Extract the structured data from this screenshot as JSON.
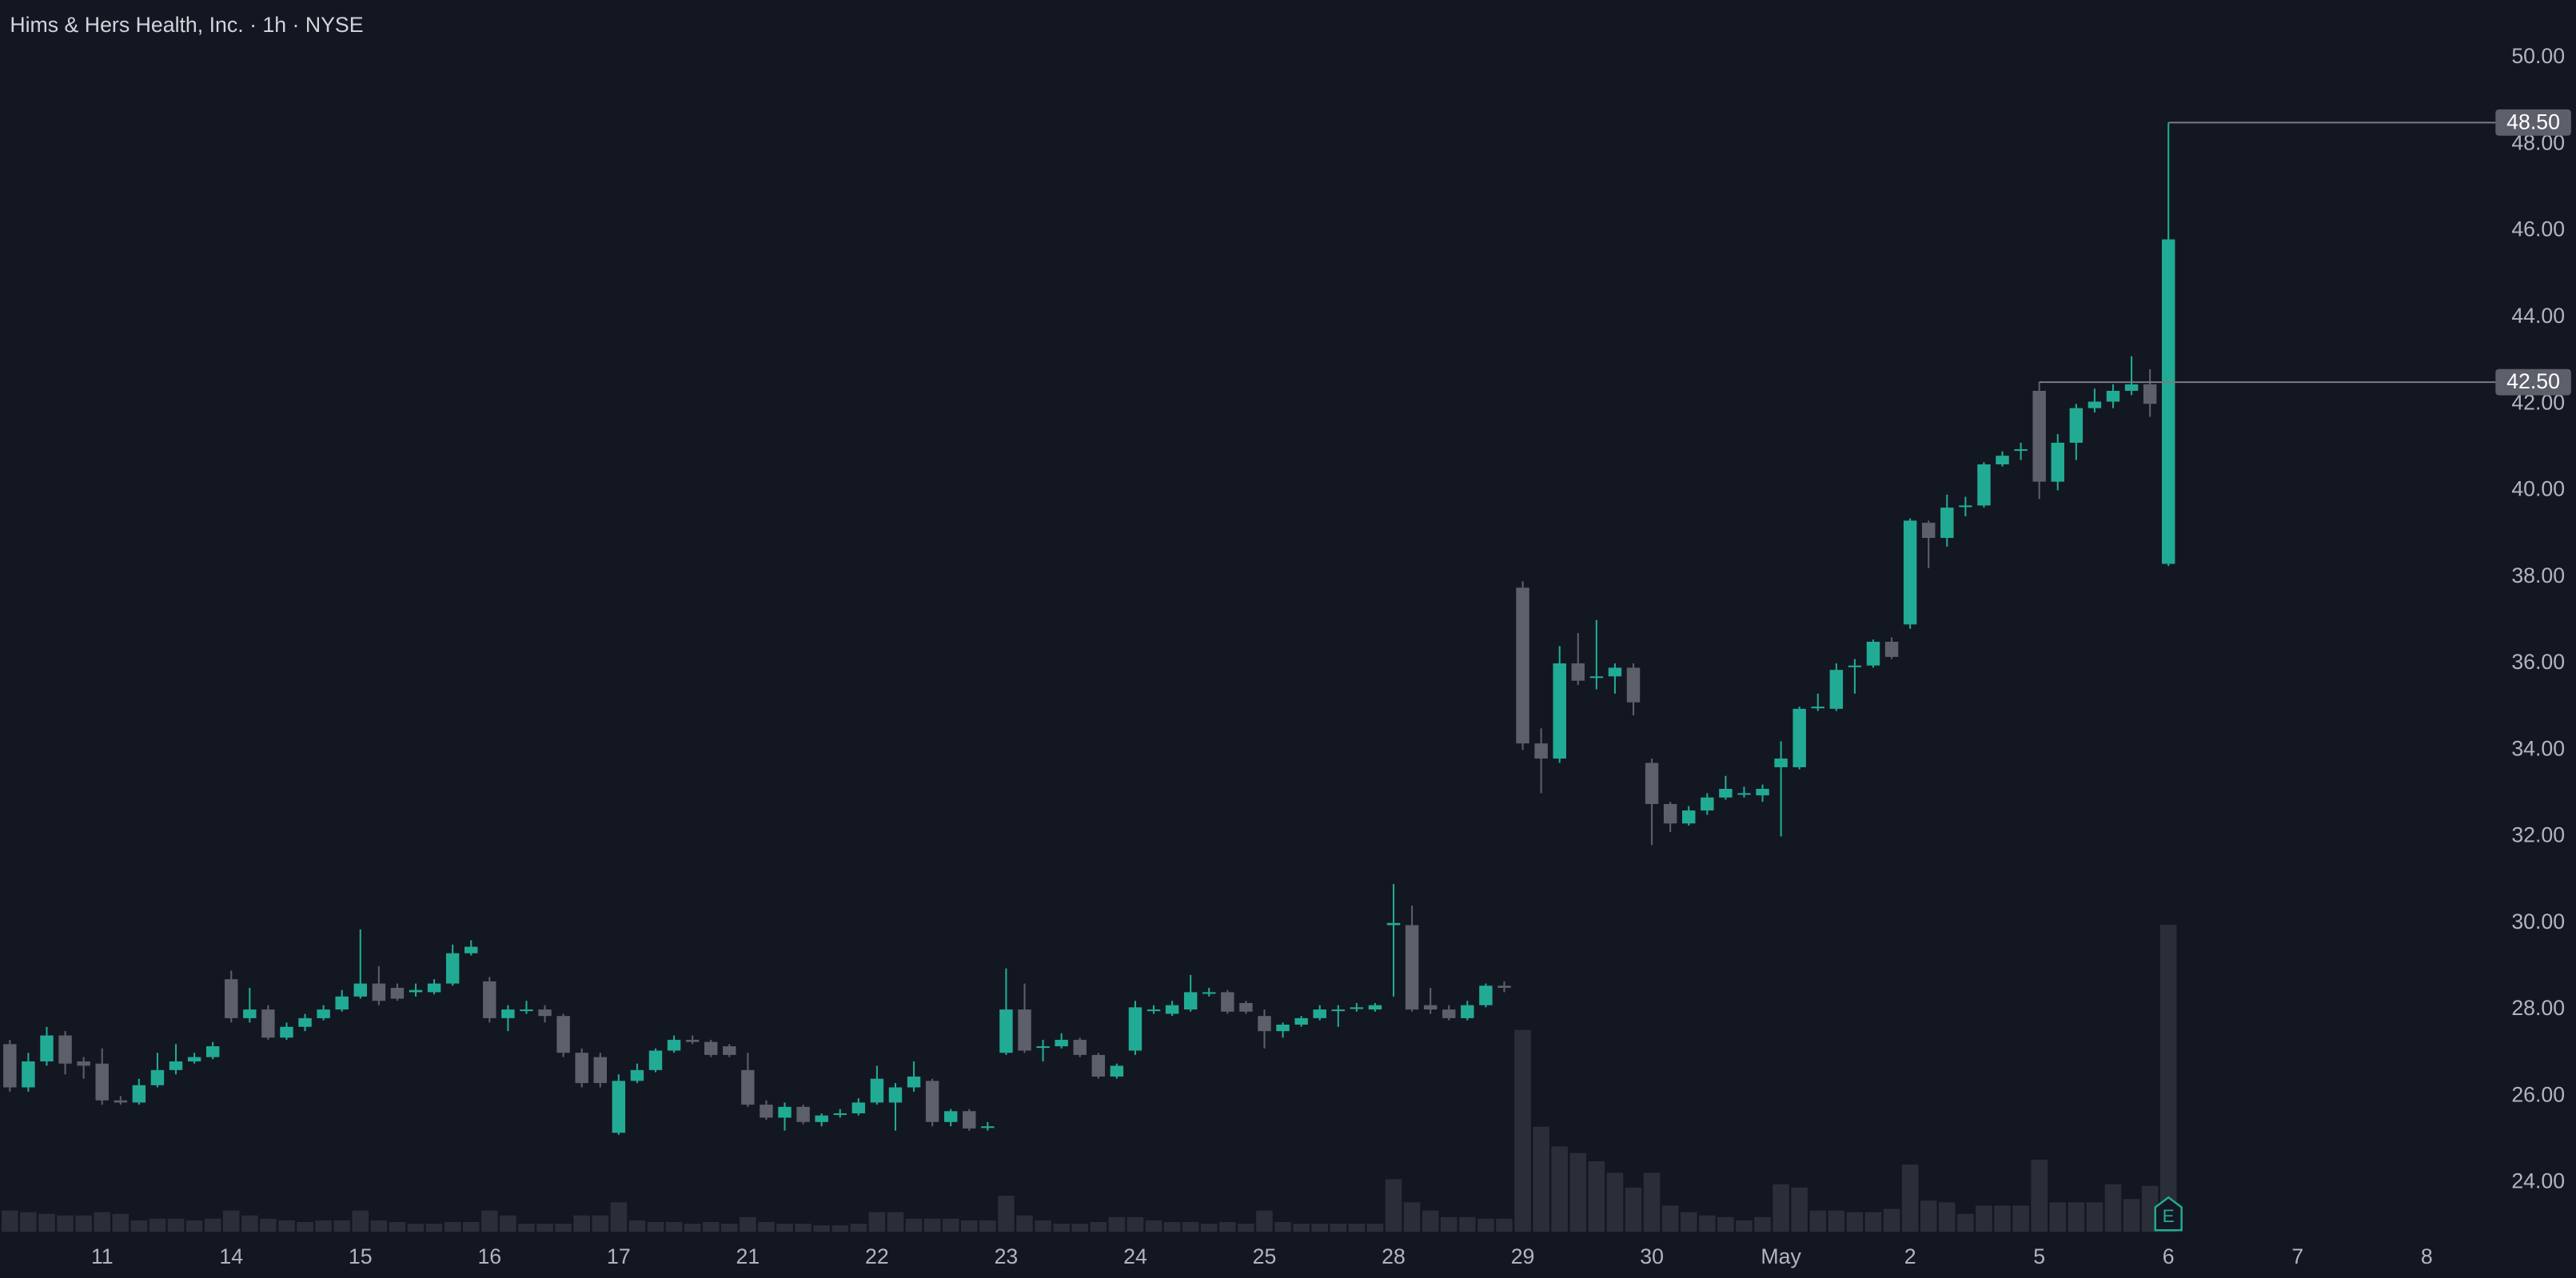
{
  "chart_data": {
    "type": "candlestick",
    "title": "Hims & Hers Health, Inc. · 1h · NYSE",
    "categories": [
      null,
      null,
      null,
      null,
      null,
      "11",
      null,
      null,
      null,
      null,
      null,
      null,
      "14",
      null,
      null,
      null,
      null,
      null,
      null,
      "15",
      null,
      null,
      null,
      null,
      null,
      null,
      "16",
      null,
      null,
      null,
      null,
      null,
      null,
      "17",
      null,
      null,
      null,
      null,
      null,
      null,
      "21",
      null,
      null,
      null,
      null,
      null,
      null,
      "22",
      null,
      null,
      null,
      null,
      null,
      null,
      "23",
      null,
      null,
      null,
      null,
      null,
      null,
      "24",
      null,
      null,
      null,
      null,
      null,
      null,
      "25",
      null,
      null,
      null,
      null,
      null,
      null,
      "28",
      null,
      null,
      null,
      null,
      null,
      null,
      "29",
      null,
      null,
      null,
      null,
      null,
      null,
      "30",
      null,
      null,
      null,
      null,
      null,
      null,
      "May",
      null,
      null,
      null,
      null,
      null,
      null,
      "2",
      null,
      null,
      null,
      null,
      null,
      null,
      "5",
      null,
      null,
      null,
      null,
      null,
      null,
      "6"
    ],
    "future_labels": [
      "7",
      "8"
    ],
    "open": [
      27.2,
      26.2,
      26.8,
      27.4,
      26.8,
      26.75,
      25.9,
      25.85,
      26.25,
      26.6,
      26.8,
      26.9,
      28.7,
      27.8,
      28.0,
      27.35,
      27.6,
      27.8,
      28.0,
      28.3,
      28.6,
      28.5,
      28.4,
      28.4,
      28.6,
      29.3,
      28.65,
      27.8,
      28.0,
      28.0,
      27.85,
      27.0,
      26.9,
      25.15,
      26.35,
      26.6,
      27.05,
      27.3,
      27.25,
      27.15,
      26.6,
      25.8,
      25.5,
      25.75,
      25.4,
      25.6,
      25.6,
      25.85,
      25.85,
      26.2,
      26.35,
      25.4,
      25.65,
      25.3,
      27.0,
      28.0,
      27.15,
      27.15,
      27.3,
      26.95,
      26.45,
      27.05,
      28.0,
      27.9,
      28.0,
      28.4,
      28.4,
      28.15,
      27.85,
      27.5,
      27.65,
      27.8,
      28.0,
      28.05,
      28.0,
      29.95,
      29.95,
      28.1,
      28.0,
      27.8,
      28.1,
      28.55,
      37.75,
      34.15,
      33.8,
      36.0,
      35.7,
      35.7,
      35.9,
      33.7,
      32.75,
      32.3,
      32.6,
      32.9,
      33.0,
      32.95,
      33.6,
      33.6,
      35.0,
      34.95,
      35.95,
      35.95,
      36.5,
      36.9,
      39.25,
      38.9,
      39.65,
      39.65,
      40.6,
      40.95,
      42.3,
      40.2,
      41.1,
      41.9,
      42.05,
      42.3,
      42.45,
      38.3
    ],
    "high": [
      27.3,
      27.0,
      27.6,
      27.5,
      26.9,
      27.1,
      26.0,
      26.4,
      27.0,
      27.2,
      27.0,
      27.25,
      28.9,
      28.5,
      28.1,
      27.7,
      27.9,
      28.1,
      28.45,
      29.85,
      29.0,
      28.6,
      28.6,
      28.7,
      29.5,
      29.6,
      28.75,
      28.1,
      28.2,
      28.1,
      27.9,
      27.1,
      27.0,
      26.5,
      26.75,
      27.1,
      27.4,
      27.4,
      27.3,
      27.2,
      27.0,
      25.9,
      25.85,
      25.8,
      25.6,
      25.7,
      25.95,
      26.7,
      26.3,
      26.8,
      26.4,
      25.7,
      25.7,
      25.4,
      28.95,
      28.6,
      27.3,
      27.45,
      27.35,
      27.0,
      26.75,
      28.2,
      28.1,
      28.2,
      28.8,
      28.5,
      28.45,
      28.2,
      28.0,
      27.7,
      27.85,
      28.1,
      28.1,
      28.15,
      28.15,
      30.9,
      30.4,
      28.5,
      28.1,
      28.2,
      28.6,
      28.65,
      37.9,
      34.5,
      36.4,
      36.7,
      37.0,
      36.0,
      36.0,
      33.8,
      32.8,
      32.7,
      33.0,
      33.4,
      33.15,
      33.2,
      34.2,
      35.0,
      35.3,
      36.0,
      36.1,
      36.55,
      36.6,
      39.35,
      39.3,
      39.9,
      39.85,
      40.65,
      40.9,
      41.1,
      42.5,
      41.3,
      42.0,
      42.35,
      42.45,
      43.1,
      42.8,
      48.5
    ],
    "low": [
      26.1,
      26.1,
      26.7,
      26.5,
      26.4,
      25.8,
      25.8,
      25.8,
      26.2,
      26.5,
      26.75,
      26.85,
      27.7,
      27.7,
      27.3,
      27.3,
      27.5,
      27.75,
      27.95,
      28.25,
      28.1,
      28.2,
      28.3,
      28.35,
      28.55,
      29.25,
      27.7,
      27.5,
      27.9,
      27.7,
      26.9,
      26.2,
      26.2,
      25.1,
      26.3,
      26.55,
      27.0,
      27.2,
      26.9,
      26.9,
      25.75,
      25.45,
      25.2,
      25.35,
      25.3,
      25.5,
      25.55,
      25.8,
      25.2,
      26.1,
      25.3,
      25.3,
      25.2,
      25.2,
      26.95,
      27.0,
      26.8,
      27.1,
      26.9,
      26.4,
      26.4,
      26.95,
      27.9,
      27.85,
      27.95,
      28.3,
      27.9,
      27.9,
      27.1,
      27.35,
      27.6,
      27.75,
      27.6,
      27.95,
      27.95,
      28.3,
      27.95,
      27.9,
      27.75,
      27.75,
      28.05,
      28.4,
      34.0,
      33.0,
      33.7,
      35.5,
      35.4,
      35.3,
      34.8,
      31.8,
      32.1,
      32.25,
      32.5,
      32.85,
      32.9,
      32.8,
      32.0,
      33.55,
      34.9,
      34.9,
      35.3,
      35.9,
      36.1,
      36.8,
      38.2,
      38.7,
      39.4,
      39.6,
      40.55,
      40.7,
      39.8,
      40.0,
      40.7,
      41.8,
      41.9,
      42.2,
      41.7,
      38.25
    ],
    "close": [
      26.2,
      26.8,
      27.4,
      26.75,
      26.7,
      25.9,
      25.85,
      26.25,
      26.6,
      26.8,
      26.9,
      27.15,
      27.8,
      28.0,
      27.35,
      27.6,
      27.8,
      28.0,
      28.3,
      28.6,
      28.2,
      28.25,
      28.45,
      28.6,
      29.3,
      29.45,
      27.8,
      28.0,
      28.0,
      27.85,
      27.0,
      26.3,
      26.3,
      26.35,
      26.6,
      27.05,
      27.3,
      27.25,
      26.95,
      26.95,
      25.8,
      25.5,
      25.75,
      25.4,
      25.55,
      25.6,
      25.85,
      26.4,
      26.2,
      26.45,
      25.4,
      25.65,
      25.25,
      25.3,
      28.0,
      27.05,
      27.15,
      27.3,
      26.95,
      26.45,
      26.7,
      28.05,
      28.0,
      28.1,
      28.4,
      28.4,
      27.95,
      27.95,
      27.5,
      27.65,
      27.8,
      28.0,
      28.0,
      28.05,
      28.1,
      30.0,
      28.0,
      28.0,
      27.8,
      28.1,
      28.55,
      28.5,
      34.15,
      33.8,
      36.0,
      35.6,
      35.7,
      35.9,
      35.1,
      32.75,
      32.3,
      32.6,
      32.9,
      33.1,
      33.0,
      33.1,
      33.8,
      34.95,
      35.0,
      35.85,
      35.95,
      36.5,
      36.15,
      39.3,
      38.9,
      39.6,
      39.65,
      40.6,
      40.8,
      40.95,
      40.2,
      41.1,
      41.9,
      42.05,
      42.3,
      42.45,
      42.0,
      45.8
    ],
    "volume": [
      13,
      12,
      11,
      10,
      10,
      12,
      11,
      7,
      8,
      8,
      7,
      8,
      13,
      10,
      8,
      7,
      6,
      7,
      7,
      13,
      7,
      6,
      5,
      5,
      6,
      6,
      13,
      10,
      5,
      5,
      5,
      10,
      10,
      18,
      7,
      6,
      6,
      5,
      6,
      5,
      9,
      6,
      5,
      5,
      4,
      4,
      5,
      12,
      12,
      8,
      8,
      8,
      7,
      7,
      22,
      10,
      7,
      5,
      5,
      6,
      9,
      9,
      7,
      6,
      6,
      5,
      6,
      5,
      13,
      6,
      5,
      5,
      5,
      5,
      5,
      32,
      18,
      13,
      9,
      9,
      8,
      8,
      123,
      64,
      52,
      48,
      43,
      36,
      27,
      36,
      16,
      12,
      10,
      9,
      7,
      9,
      29,
      27,
      13,
      13,
      12,
      12,
      14,
      41,
      19,
      18,
      11,
      16,
      16,
      16,
      44,
      18,
      18,
      18,
      29,
      20,
      28,
      187
    ],
    "ylim": [
      22.86,
      51.33
    ],
    "yticks": [
      {
        "value": 24,
        "label": "24.00"
      },
      {
        "value": 26,
        "label": "26.00"
      },
      {
        "value": 28,
        "label": "28.00"
      },
      {
        "value": 30,
        "label": "30.00"
      },
      {
        "value": 32,
        "label": "32.00"
      },
      {
        "value": 34,
        "label": "34.00"
      },
      {
        "value": 36,
        "label": "36.00"
      },
      {
        "value": 38,
        "label": "38.00"
      },
      {
        "value": 40,
        "label": "40.00"
      },
      {
        "value": 42,
        "label": "42.00"
      },
      {
        "value": 44,
        "label": "44.00"
      },
      {
        "value": 46,
        "label": "46.00"
      },
      {
        "value": 48,
        "label": "48.00"
      },
      {
        "value": 50,
        "label": "50.00"
      }
    ],
    "volume_lim": [
      0,
      200
    ],
    "price_markers": [
      {
        "value": 48.5,
        "label": "48.50"
      },
      {
        "value": 42.5,
        "label": "42.50"
      }
    ],
    "earnings_marker": "E",
    "up_color": "#22ab94",
    "down_color": "#5d606b",
    "volume_color": "#2a2e39",
    "grid": false
  }
}
